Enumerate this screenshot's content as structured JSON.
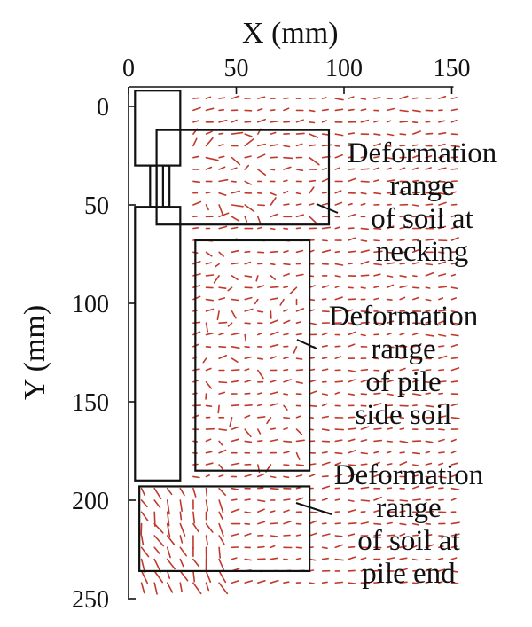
{
  "chart_data": {
    "type": "vector-field",
    "xlabel": "X (mm)",
    "ylabel": "Y (mm)",
    "xlim": [
      0,
      150
    ],
    "ylim": [
      0,
      250
    ],
    "y_inverted": true,
    "x_ticks": [
      0,
      50,
      100,
      150
    ],
    "y_ticks": [
      0,
      50,
      100,
      150,
      200,
      250
    ],
    "x_axis_position": "top",
    "arrow_color": "#c0392b",
    "pile": [
      {
        "name": "pile-cap",
        "x": [
          3,
          24
        ],
        "y": [
          -8,
          30
        ]
      },
      {
        "name": "neck-left",
        "x": [
          10,
          13
        ],
        "y": [
          30,
          51
        ]
      },
      {
        "name": "neck-right",
        "x": [
          16,
          19
        ],
        "y": [
          30,
          51
        ]
      },
      {
        "name": "pile-shaft",
        "x": [
          3,
          24
        ],
        "y": [
          51,
          190
        ]
      }
    ],
    "regions": [
      {
        "name": "necking",
        "label": [
          "Deformation",
          "range",
          "of soil at",
          "necking"
        ],
        "x": [
          13,
          93
        ],
        "y": [
          12,
          60
        ]
      },
      {
        "name": "pile-side",
        "label": [
          "Deformation",
          "range",
          "of pile",
          "side soil"
        ],
        "x": [
          31,
          84
        ],
        "y": [
          68,
          185
        ]
      },
      {
        "name": "pile-end",
        "label": [
          "Deformation",
          "range",
          "of soil at",
          "pile end"
        ],
        "x": [
          5,
          84
        ],
        "y": [
          193,
          236
        ]
      }
    ],
    "legend": "none",
    "grid": false
  }
}
